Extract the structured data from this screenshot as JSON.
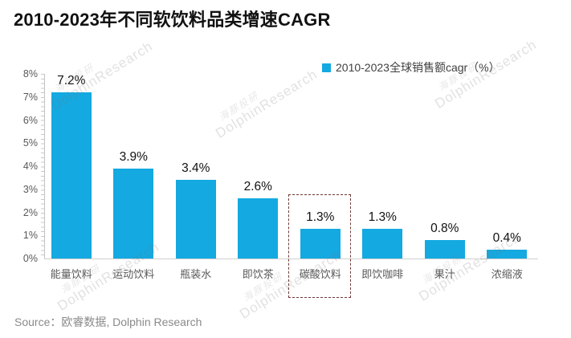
{
  "title": "2010-2023年不同软饮料品类增速CAGR",
  "legend": {
    "label": "2010-2023全球销售额cagr（%）",
    "marker_color": "#14a9e1"
  },
  "source": "Source：欧睿数据, Dolphin Research",
  "watermark": {
    "cn": "海豚投研",
    "en": "DolphinResearch"
  },
  "colors": {
    "bar": "#14a9e1",
    "highlight_box": "#6e3636",
    "axis": "#c2c2c2",
    "text_gray": "#595959"
  },
  "chart_data": {
    "type": "bar",
    "title": "2010-2023年不同软饮料品类增速CAGR",
    "categories": [
      "能量饮料",
      "运动饮料",
      "瓶装水",
      "即饮茶",
      "碳酸饮料",
      "即饮咖啡",
      "果汁",
      "浓缩液"
    ],
    "values": [
      7.2,
      3.9,
      3.4,
      2.6,
      1.3,
      1.3,
      0.8,
      0.4
    ],
    "value_labels": [
      "7.2%",
      "3.9%",
      "3.4%",
      "2.6%",
      "1.3%",
      "1.3%",
      "0.8%",
      "0.4%"
    ],
    "xlabel": "",
    "ylabel": "",
    "ylim": [
      0,
      8
    ],
    "ytick_labels": [
      "0%",
      "1%",
      "2%",
      "3%",
      "4%",
      "5%",
      "6%",
      "7%",
      "8%"
    ],
    "grid": false,
    "legend_entries": [
      "2010-2023全球销售额cagr（%）"
    ],
    "legend_position": "top-center-right",
    "highlighted_category": "碳酸饮料"
  }
}
